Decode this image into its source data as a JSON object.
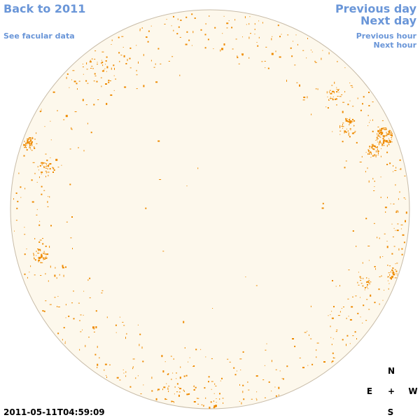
{
  "nav": {
    "back": "Back to 2011",
    "facular": "See facular data",
    "previous_day": "Previous day",
    "next_day": "Next day",
    "previous_hour": "Previous hour",
    "next_hour": "Next hour"
  },
  "timestamp": "2011-05-11T04:59:09",
  "compass": {
    "north": "N",
    "east": "E",
    "center": "+",
    "west": "W",
    "south": "S"
  },
  "colors": {
    "disk_fill": "#fdf8ec",
    "disk_border": "#c8bca8",
    "facula": "#ee8a00",
    "link": "#6a96d8"
  }
}
